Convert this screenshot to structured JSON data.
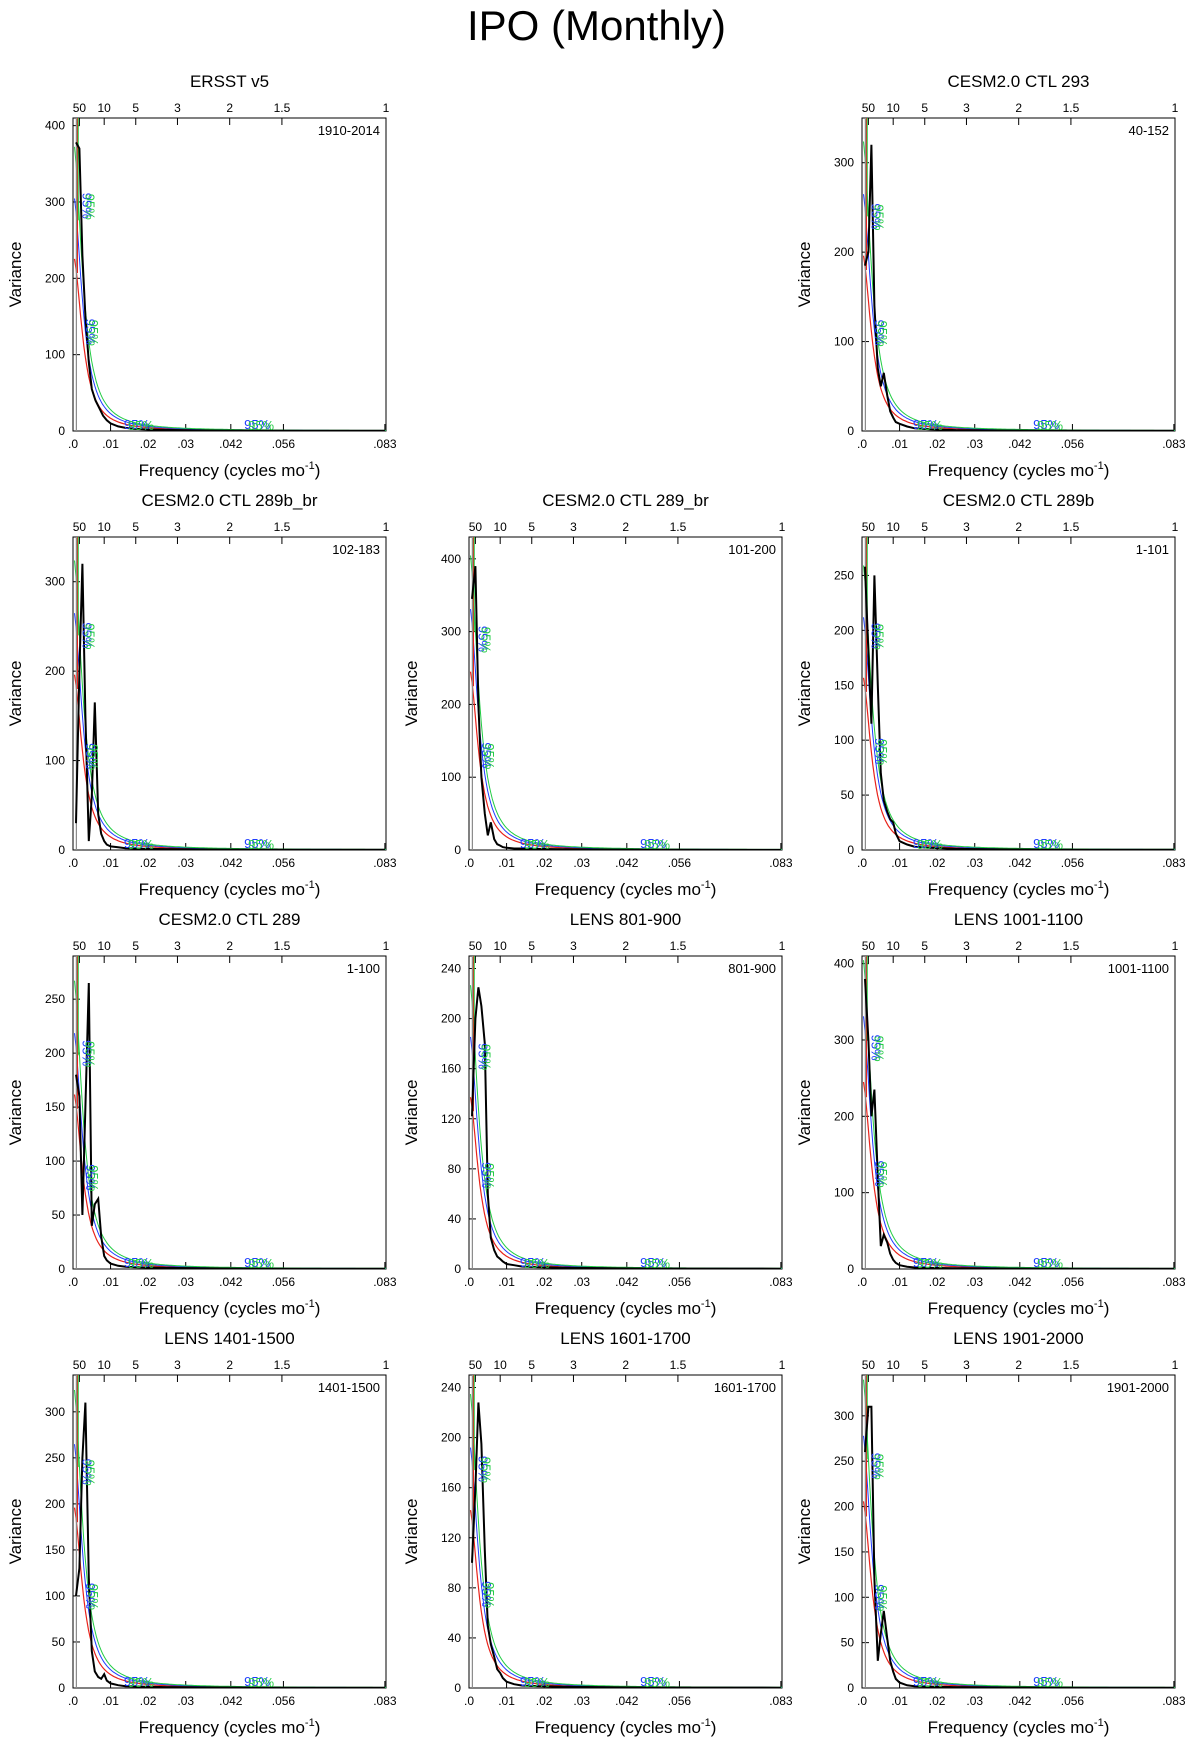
{
  "title": "IPO (Monthly)",
  "colors": {
    "spectrum": "#000000",
    "red_noise": "#e8231b",
    "lower_bound": "#1e3cff",
    "upper_bound": "#22cc44",
    "marker": "#8a8a8a"
  },
  "axes": {
    "xlabel_main": "Frequency (cycles mo",
    "xlabel_sup": "-1",
    "xlabel_close": ")",
    "ylabel": "Variance",
    "bottom_ticks": [
      {
        "v": 0,
        "label": ".0"
      },
      {
        "v": 0.01,
        "label": ".01"
      },
      {
        "v": 0.02,
        "label": ".02"
      },
      {
        "v": 0.03,
        "label": ".03"
      },
      {
        "v": 0.042,
        "label": ".042"
      },
      {
        "v": 0.056,
        "label": ".056"
      },
      {
        "v": 0.083,
        "label": ".083"
      }
    ],
    "top_ticks": [
      {
        "v": 0.0017,
        "label": "50"
      },
      {
        "v": 0.0083,
        "label": "10"
      },
      {
        "v": 0.0167,
        "label": "5"
      },
      {
        "v": 0.0278,
        "label": "3"
      },
      {
        "v": 0.0417,
        "label": "2"
      },
      {
        "v": 0.0556,
        "label": "1.5"
      },
      {
        "v": 0.0833,
        "label": "1"
      }
    ],
    "xlim": [
      0,
      0.0833
    ],
    "sig_label": "95%"
  },
  "chart_data": [
    {
      "type": "line",
      "title": "ERSST v5",
      "period": "1910-2014",
      "ylim": [
        0,
        410
      ],
      "yticks": [
        0,
        100,
        200,
        300,
        400
      ],
      "x": [
        0.0008,
        0.0017,
        0.0025,
        0.0033,
        0.0042,
        0.005,
        0.006,
        0.007,
        0.008,
        0.009,
        0.01,
        0.012,
        0.014,
        0.016,
        0.02,
        0.03,
        0.04,
        0.06,
        0.083
      ],
      "y": [
        378,
        370,
        230,
        150,
        90,
        55,
        40,
        30,
        20,
        14,
        10,
        6,
        4,
        3,
        2,
        1,
        0.5,
        0.3,
        0.2
      ],
      "red_peak": 230,
      "sig_y": [
        295,
        130
      ]
    },
    null,
    {
      "type": "line",
      "title": "CESM2.0 CTL 293",
      "period": "40-152",
      "ylim": [
        0,
        350
      ],
      "yticks": [
        0,
        100,
        200,
        300
      ],
      "x": [
        0.0008,
        0.0017,
        0.0025,
        0.0033,
        0.0042,
        0.005,
        0.0058,
        0.0067,
        0.0075,
        0.0083,
        0.009,
        0.01,
        0.012,
        0.014,
        0.018,
        0.025,
        0.04,
        0.06,
        0.083
      ],
      "y": [
        185,
        200,
        320,
        140,
        70,
        50,
        65,
        40,
        22,
        15,
        10,
        8,
        5,
        3,
        2,
        1,
        0.5,
        0.3,
        0.2
      ],
      "red_peak": 200,
      "sig_y": [
        240,
        110
      ]
    },
    {
      "type": "line",
      "title": "CESM2.0 CTL 289b_br",
      "period": "102-183",
      "ylim": [
        0,
        350
      ],
      "yticks": [
        0,
        100,
        200,
        300
      ],
      "x": [
        0.0008,
        0.0017,
        0.0025,
        0.0033,
        0.0042,
        0.005,
        0.0058,
        0.0067,
        0.0075,
        0.0083,
        0.009,
        0.01,
        0.012,
        0.014,
        0.018,
        0.025,
        0.04,
        0.06,
        0.083
      ],
      "y": [
        30,
        200,
        320,
        150,
        10,
        60,
        165,
        40,
        18,
        10,
        6,
        4,
        3,
        2,
        1.5,
        1,
        0.5,
        0.3,
        0.2
      ],
      "red_peak": 200,
      "sig_y": [
        240,
        105
      ]
    },
    {
      "type": "line",
      "title": "CESM2.0 CTL 289_br",
      "period": "101-200",
      "ylim": [
        0,
        430
      ],
      "yticks": [
        0,
        100,
        200,
        300,
        400
      ],
      "x": [
        0.0008,
        0.0017,
        0.0025,
        0.0033,
        0.0042,
        0.005,
        0.0058,
        0.0067,
        0.0075,
        0.0083,
        0.009,
        0.01,
        0.012,
        0.014,
        0.018,
        0.025,
        0.04,
        0.06,
        0.083
      ],
      "y": [
        345,
        390,
        200,
        100,
        50,
        20,
        38,
        15,
        8,
        6,
        4,
        3,
        2,
        2,
        1.5,
        1,
        0.5,
        0.3,
        0.2
      ],
      "red_peak": 250,
      "sig_y": [
        290,
        130
      ]
    },
    {
      "type": "line",
      "title": "CESM2.0 CTL 289b",
      "period": "1-101",
      "ylim": [
        0,
        285
      ],
      "yticks": [
        0,
        50,
        100,
        150,
        200,
        250
      ],
      "x": [
        0.0008,
        0.0017,
        0.0025,
        0.0033,
        0.0042,
        0.005,
        0.0058,
        0.0067,
        0.0075,
        0.0083,
        0.009,
        0.01,
        0.012,
        0.014,
        0.018,
        0.025,
        0.04,
        0.06,
        0.083
      ],
      "y": [
        258,
        180,
        115,
        250,
        150,
        70,
        45,
        35,
        28,
        25,
        15,
        8,
        5,
        3,
        2,
        1,
        0.5,
        0.3,
        0.2
      ],
      "red_peak": 160,
      "sig_y": [
        195,
        90
      ]
    },
    {
      "type": "line",
      "title": "CESM2.0 CTL 289",
      "period": "1-100",
      "ylim": [
        0,
        290
      ],
      "yticks": [
        0,
        50,
        100,
        150,
        200,
        250
      ],
      "x": [
        0.0008,
        0.0017,
        0.0025,
        0.0033,
        0.0042,
        0.005,
        0.0058,
        0.0067,
        0.0075,
        0.0083,
        0.009,
        0.01,
        0.012,
        0.014,
        0.018,
        0.025,
        0.04,
        0.06,
        0.083
      ],
      "y": [
        180,
        160,
        50,
        150,
        265,
        40,
        60,
        65,
        30,
        12,
        8,
        5,
        3,
        2,
        1.5,
        1,
        0.5,
        0.3,
        0.2
      ],
      "red_peak": 165,
      "sig_y": [
        200,
        85
      ]
    },
    {
      "type": "line",
      "title": "LENS 801-900",
      "period": "801-900",
      "ylim": [
        0,
        250
      ],
      "yticks": [
        0,
        40,
        80,
        120,
        160,
        200,
        240
      ],
      "x": [
        0.0008,
        0.0017,
        0.0025,
        0.0033,
        0.0042,
        0.005,
        0.0058,
        0.0067,
        0.0075,
        0.0083,
        0.009,
        0.01,
        0.012,
        0.014,
        0.018,
        0.025,
        0.04,
        0.06,
        0.083
      ],
      "y": [
        122,
        200,
        225,
        210,
        180,
        60,
        25,
        15,
        10,
        8,
        6,
        4,
        3,
        2,
        1.5,
        1,
        0.5,
        0.3,
        0.2
      ],
      "red_peak": 140,
      "sig_y": [
        170,
        75
      ]
    },
    {
      "type": "line",
      "title": "LENS 1001-1100",
      "period": "1001-1100",
      "ylim": [
        0,
        410
      ],
      "yticks": [
        0,
        100,
        200,
        300,
        400
      ],
      "x": [
        0.0008,
        0.0017,
        0.0025,
        0.0033,
        0.0042,
        0.005,
        0.0058,
        0.0067,
        0.0075,
        0.0083,
        0.009,
        0.01,
        0.012,
        0.014,
        0.018,
        0.025,
        0.04,
        0.06,
        0.083
      ],
      "y": [
        380,
        300,
        200,
        235,
        120,
        30,
        45,
        35,
        20,
        12,
        8,
        5,
        3,
        2,
        1.5,
        1,
        0.5,
        0.3,
        0.2
      ],
      "red_peak": 250,
      "sig_y": [
        290,
        125
      ]
    },
    {
      "type": "line",
      "title": "LENS 1401-1500",
      "period": "1401-1500",
      "ylim": [
        0,
        340
      ],
      "yticks": [
        0,
        50,
        100,
        150,
        200,
        250,
        300
      ],
      "x": [
        0.0008,
        0.0017,
        0.0025,
        0.0033,
        0.0042,
        0.005,
        0.0058,
        0.0067,
        0.0075,
        0.0083,
        0.009,
        0.01,
        0.012,
        0.014,
        0.018,
        0.025,
        0.04,
        0.06,
        0.083
      ],
      "y": [
        100,
        130,
        250,
        310,
        120,
        40,
        18,
        12,
        10,
        15,
        8,
        5,
        3,
        2,
        1.5,
        1,
        0.5,
        0.3,
        0.2
      ],
      "red_peak": 200,
      "sig_y": [
        235,
        100
      ]
    },
    {
      "type": "line",
      "title": "LENS 1601-1700",
      "period": "1601-1700",
      "ylim": [
        0,
        250
      ],
      "yticks": [
        0,
        40,
        80,
        120,
        160,
        200,
        240
      ],
      "x": [
        0.0008,
        0.0017,
        0.0025,
        0.0033,
        0.0042,
        0.005,
        0.0058,
        0.0067,
        0.0075,
        0.0083,
        0.009,
        0.01,
        0.012,
        0.014,
        0.018,
        0.025,
        0.04,
        0.06,
        0.083
      ],
      "y": [
        100,
        160,
        228,
        195,
        110,
        50,
        35,
        25,
        15,
        12,
        8,
        5,
        3,
        2,
        1.5,
        1,
        0.5,
        0.3,
        0.2
      ],
      "red_peak": 145,
      "sig_y": [
        175,
        75
      ]
    },
    {
      "type": "line",
      "title": "LENS 1901-2000",
      "period": "1901-2000",
      "ylim": [
        0,
        345
      ],
      "yticks": [
        0,
        50,
        100,
        150,
        200,
        250,
        300
      ],
      "x": [
        0.0008,
        0.0017,
        0.0025,
        0.0033,
        0.0042,
        0.005,
        0.0058,
        0.0067,
        0.0075,
        0.0083,
        0.009,
        0.01,
        0.012,
        0.014,
        0.018,
        0.025,
        0.04,
        0.06,
        0.083
      ],
      "y": [
        260,
        310,
        310,
        120,
        30,
        60,
        85,
        55,
        30,
        18,
        10,
        6,
        3,
        2,
        1.5,
        1,
        0.5,
        0.3,
        0.2
      ],
      "red_peak": 210,
      "sig_y": [
        245,
        100
      ]
    }
  ]
}
